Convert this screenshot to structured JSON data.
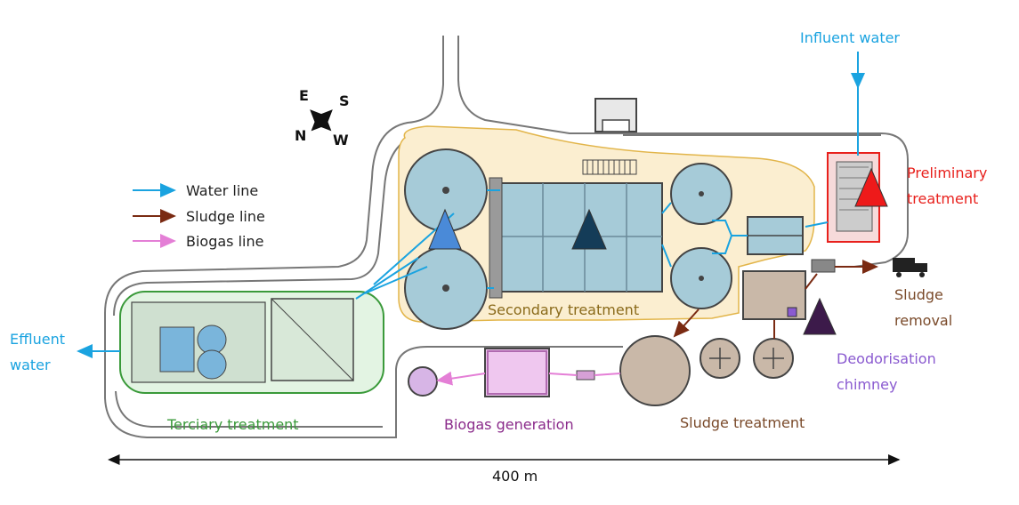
{
  "colors": {
    "water": "#1aa3e0",
    "sludge": "#7a2a12",
    "biogas": "#e47fd6",
    "tertiary": "#3a9a3a",
    "biogas_text": "#8a2a8a",
    "sludge_text": "#7a4a2a",
    "preliminary": "#e8201c",
    "deodor": "#8a5ad0",
    "secondary_text": "#8a6a1a"
  },
  "compass": {
    "e": "E",
    "s": "S",
    "n": "N",
    "w": "W"
  },
  "legend": [
    {
      "label": "Water line",
      "color": "#1aa3e0"
    },
    {
      "label": "Sludge line",
      "color": "#7a2a12"
    },
    {
      "label": "Biogas line",
      "color": "#e47fd6"
    }
  ],
  "labels": {
    "influent": "Influent water",
    "preliminary_1": "Preliminary",
    "preliminary_2": "treatment",
    "sludge_removal_1": "Sludge",
    "sludge_removal_2": "removal",
    "deodor_1": "Deodorisation",
    "deodor_2": "chimney",
    "secondary": "Secondary treatment",
    "sludge_treatment": "Sludge treatment",
    "biogas_generation": "Biogas generation",
    "tertiary": "Terciary treatment",
    "effluent_1": "Effluent",
    "effluent_2": "water",
    "scale": "400 m"
  },
  "markers": [
    {
      "name": "marker-secondary-clarifier",
      "color": "#4a8ad8"
    },
    {
      "name": "marker-aeration-basin",
      "color": "#143c58"
    },
    {
      "name": "marker-preliminary",
      "color": "#ee1a1a"
    },
    {
      "name": "marker-deodorisation",
      "color": "#3c1a4a"
    }
  ]
}
